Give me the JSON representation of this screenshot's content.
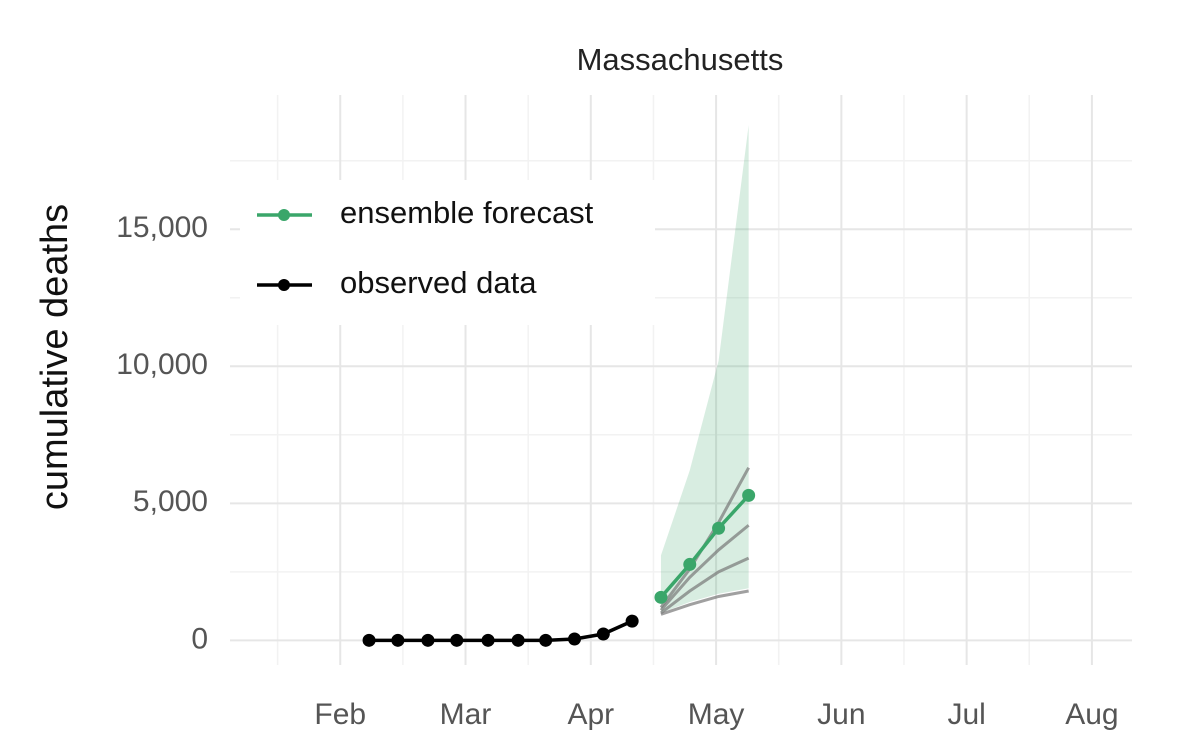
{
  "chart_data": {
    "type": "line",
    "title": "Massachusetts",
    "y_label": "cumulative deaths",
    "xlim": [
      1.12,
      8.32
    ],
    "xticks": [
      {
        "value": 2,
        "label": "Feb"
      },
      {
        "value": 3,
        "label": "Mar"
      },
      {
        "value": 4,
        "label": "Apr"
      },
      {
        "value": 5,
        "label": "May"
      },
      {
        "value": 6,
        "label": "Jun"
      },
      {
        "value": 7,
        "label": "Jul"
      },
      {
        "value": 8,
        "label": "Aug"
      }
    ],
    "ylim": [
      -900,
      19900
    ],
    "yticks": [
      0,
      {
        "value": 5000,
        "label": "5,000"
      },
      {
        "value": 10000,
        "label": "10,000"
      },
      {
        "value": 15000,
        "label": "15,000"
      }
    ],
    "grid": true,
    "legend": "top-left",
    "series": [
      {
        "name": "ensemble forecast",
        "color": "#3aa66a",
        "x": [
          4.56,
          4.79,
          5.02,
          5.26
        ],
        "values": [
          1570,
          2770,
          4090,
          5290
        ]
      },
      {
        "name": "observed data",
        "color": "#000000",
        "x": [
          2.23,
          2.46,
          2.7,
          2.93,
          3.18,
          3.42,
          3.64,
          3.87,
          4.1,
          4.33
        ],
        "values": [
          0,
          0,
          0,
          0,
          0,
          0,
          0,
          50,
          230,
          700
        ]
      }
    ],
    "interval": {
      "color": "#3aa66a",
      "x": [
        4.56,
        4.79,
        5.02,
        5.26
      ],
      "lower": [
        1000,
        1400,
        1700,
        1900
      ],
      "upper": [
        3100,
        6200,
        10200,
        18800
      ]
    },
    "model_lines": {
      "color": "#777777",
      "x": [
        4.56,
        4.79,
        5.02,
        5.26
      ],
      "lines": [
        [
          1200,
          2600,
          4300,
          6300
        ],
        [
          1100,
          2300,
          3300,
          4200
        ],
        [
          1000,
          1800,
          2500,
          3000
        ],
        [
          950,
          1300,
          1600,
          1800
        ]
      ]
    }
  }
}
